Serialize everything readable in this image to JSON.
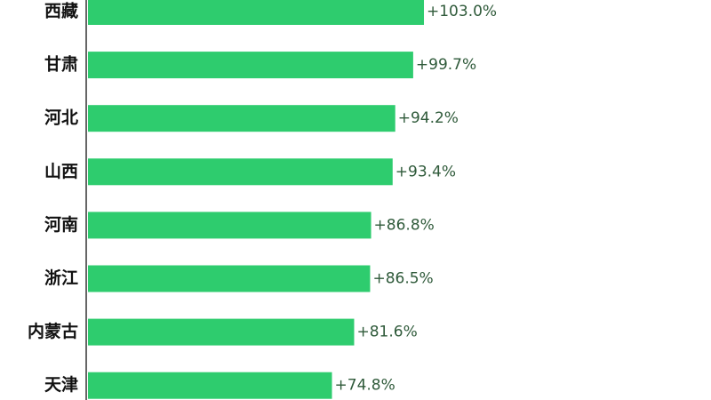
{
  "chart_data": {
    "type": "bar",
    "orientation": "horizontal",
    "categories": [
      "西藏",
      "甘肃",
      "河北",
      "山西",
      "河南",
      "浙江",
      "内蒙古",
      "天津"
    ],
    "values": [
      103.0,
      99.7,
      94.2,
      93.4,
      86.8,
      86.5,
      81.6,
      74.8
    ],
    "value_labels": [
      "+103.0%",
      "+99.7%",
      "+94.2%",
      "+93.4%",
      "+86.8%",
      "+86.5%",
      "+81.6%",
      "+74.8%"
    ],
    "color": "#2ecc6e"
  }
}
